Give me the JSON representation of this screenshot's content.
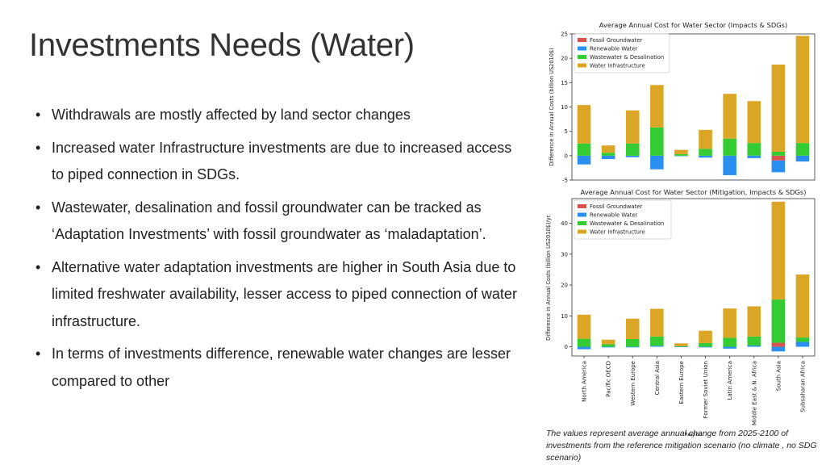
{
  "slide": {
    "title": "Investments Needs (Water)",
    "bullets": [
      "Withdrawals are mostly affected by land sector changes",
      "Increased water Infrastructure investments are due to increased access to piped connection in SDGs.",
      "Wastewater, desalination and fossil groundwater can be tracked as ‘Adaptation Investments’ with fossil groundwater as ‘maladaptation’.",
      "Alternative water adaptation investments are higher in South Asia due to limited freshwater availability, lesser access to piped connection of water infrastructure.",
      "In terms of investments difference, renewable water changes are lesser compared to other"
    ],
    "caption": "The values represent average annual change from 2025-2100 of investments from the reference mitigation scenario (no climate , no SDG scenario)",
    "bullet_glyph": "•"
  },
  "colors": {
    "fossil": "#d9534f",
    "renewable": "#2b8ff0",
    "wastewater": "#33cc33",
    "infrastructure": "#dba526"
  },
  "chart_data": [
    {
      "type": "bar",
      "stacked": true,
      "title": "Average Annual Cost for Water Sector (Impacts & SDGs)",
      "ylabel": "Difference in Annual Costs (billion US2010$)",
      "xlabel": "",
      "ylim": [
        -5,
        25
      ],
      "yticks": [
        -5,
        0,
        5,
        10,
        15,
        20,
        25
      ],
      "legend": "top-left",
      "grid": false,
      "show_category_labels": false,
      "categories": [
        "North America",
        "Pacific OECD",
        "Western Europe",
        "Central Asia",
        "Eastern Europe",
        "Former Soviet Union",
        "Latin America",
        "Middle East & N. Africa",
        "South Asia",
        "Subsaharan Africa"
      ],
      "series": [
        {
          "name": "Fossil Groundwater",
          "color_key": "fossil",
          "values": [
            0,
            0,
            0,
            0,
            0,
            0,
            0,
            0,
            -1.0,
            0
          ]
        },
        {
          "name": "Renewable Water",
          "color_key": "renewable",
          "values": [
            -1.8,
            -0.7,
            -0.3,
            -2.8,
            -0.1,
            -0.4,
            -4.0,
            -0.5,
            -2.4,
            -1.2
          ]
        },
        {
          "name": "Wastewater & Desalination",
          "color_key": "wastewater",
          "values": [
            2.5,
            0.6,
            2.5,
            5.8,
            0.3,
            1.4,
            3.5,
            2.6,
            0.8,
            2.6
          ]
        },
        {
          "name": "Water Infrastructure",
          "color_key": "infrastructure",
          "values": [
            7.9,
            1.5,
            6.8,
            8.7,
            0.9,
            3.9,
            9.2,
            8.6,
            17.9,
            22.0
          ]
        }
      ]
    },
    {
      "type": "bar",
      "stacked": true,
      "title": "Average Annual Cost for Water Sector (Mitigation, Impacts & SDGs)",
      "ylabel": "Difference in Annual Costs (billion US2010$)/yr.",
      "xlabel": "Region",
      "ylim": [
        -3,
        48
      ],
      "yticks": [
        0,
        10,
        20,
        30,
        40
      ],
      "legend": "top-left",
      "grid": false,
      "show_category_labels": true,
      "categories": [
        "North America",
        "Pacific OECD",
        "Western Europe",
        "Central Asia",
        "Eastern Europe",
        "Former Soviet Union",
        "Latin America",
        "Middle East & N. Africa",
        "South Asia",
        "Subsaharan Africa"
      ],
      "series": [
        {
          "name": "Fossil Groundwater",
          "color_key": "fossil",
          "values": [
            0,
            0,
            0,
            0,
            0,
            0,
            0,
            0,
            1.3,
            0
          ]
        },
        {
          "name": "Renewable Water",
          "color_key": "renewable",
          "values": [
            -0.8,
            -0.2,
            -0.2,
            0.3,
            -0.1,
            -0.2,
            -0.6,
            0.4,
            -1.5,
            1.6
          ]
        },
        {
          "name": "Wastewater & Desalination",
          "color_key": "wastewater",
          "values": [
            2.6,
            0.8,
            2.5,
            3.0,
            0.2,
            1.2,
            2.9,
            2.9,
            14.0,
            1.4
          ]
        },
        {
          "name": "Water Infrastructure",
          "color_key": "infrastructure",
          "values": [
            7.8,
            1.5,
            6.6,
            9.0,
            0.9,
            4.0,
            9.5,
            9.8,
            31.7,
            20.4
          ]
        }
      ]
    }
  ]
}
